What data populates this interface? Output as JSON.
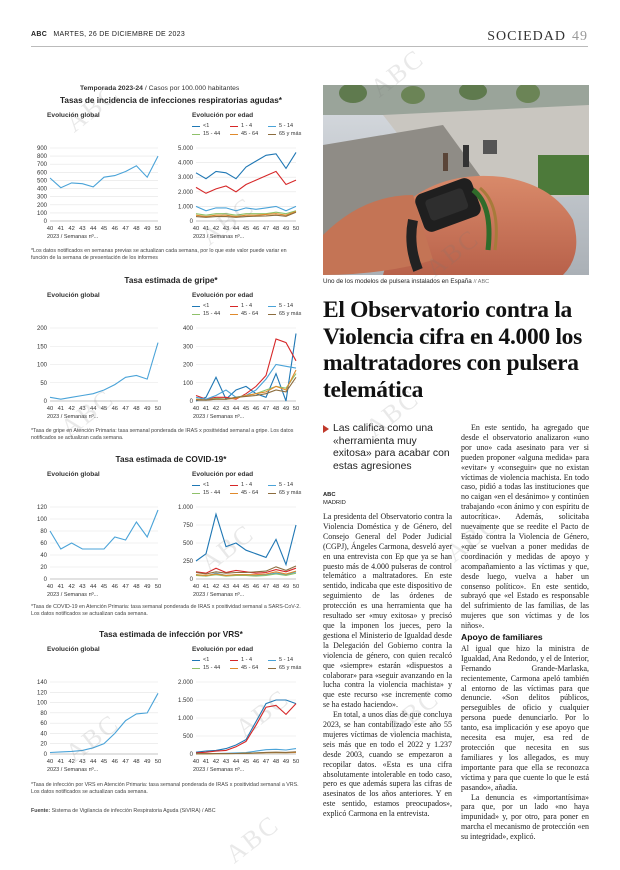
{
  "header": {
    "paper": "ABC",
    "date": "MARTES, 26 DE DICIEMBRE DE 2023",
    "section": "SOCIEDAD",
    "page": "49"
  },
  "watermark": "ABC",
  "infographic": {
    "season_label": "Temporada 2023-24",
    "season_unit": "/ Casos por 100.000 habitantes",
    "legend_labels": [
      "<1",
      "1 - 4",
      "5 - 14",
      "15 - 44",
      "45 - 64",
      "65 y más"
    ],
    "legend_colors": [
      "#1f77b4",
      "#d62728",
      "#4aa3d8",
      "#8fc16a",
      "#e08a2c",
      "#8c6d3f"
    ],
    "global_label": "Evolución global",
    "age_label": "Evolución por edad",
    "xaxis_caption": "2023 / Semanas nº...",
    "weeks": [
      "40",
      "41",
      "42",
      "43",
      "44",
      "45",
      "46",
      "47",
      "48",
      "49",
      "50"
    ],
    "source_bold": "Fuente:",
    "source_text": "Sistema de Vigilancia de infección Respiratoria Aguda (SiVIRA) / ABC"
  },
  "chart_data": [
    {
      "type": "line",
      "title": "Tasas de incidencia de infecciones respiratorias agudas*",
      "global": {
        "values": [
          530,
          410,
          470,
          460,
          420,
          540,
          560,
          610,
          680,
          540,
          800
        ],
        "ylim": [
          0,
          900
        ],
        "ticks": [
          "0",
          "100",
          "200",
          "300",
          "400",
          "500",
          "600",
          "700",
          "800",
          "900"
        ]
      },
      "by_age": {
        "ylim": [
          0,
          5000
        ],
        "ticks": [
          "0",
          "1.000",
          "2.000",
          "3.000",
          "4.000",
          "5.000"
        ],
        "series": [
          {
            "name": "<1",
            "values": [
              3300,
              2900,
              3400,
              3300,
              2900,
              3700,
              4100,
              4500,
              4600,
              3600,
              4700
            ]
          },
          {
            "name": "1 - 4",
            "values": [
              2300,
              1900,
              2200,
              2400,
              2000,
              2500,
              2800,
              3100,
              3400,
              2500,
              2800
            ]
          },
          {
            "name": "5 - 14",
            "values": [
              1000,
              700,
              900,
              900,
              700,
              900,
              800,
              900,
              1000,
              700,
              1000
            ]
          },
          {
            "name": "15 - 44",
            "values": [
              500,
              400,
              500,
              500,
              400,
              500,
              500,
              500,
              600,
              500,
              700
            ]
          },
          {
            "name": "45 - 64",
            "values": [
              400,
              300,
              400,
              400,
              300,
              400,
              400,
              450,
              500,
              400,
              650
            ]
          },
          {
            "name": "65 y más",
            "values": [
              300,
              250,
              300,
              300,
              250,
              300,
              330,
              350,
              400,
              320,
              600
            ]
          }
        ]
      },
      "note": "*Los datos notificados en semanas previas se actualizan cada semana, por lo que este valor puede variar en función de la semana de presentación de los informes"
    },
    {
      "type": "line",
      "title": "Tasa estimada de gripe*",
      "global": {
        "values": [
          10,
          5,
          10,
          15,
          20,
          30,
          45,
          65,
          70,
          60,
          160
        ],
        "ylim": [
          0,
          200
        ],
        "ticks": [
          "0",
          "50",
          "100",
          "150",
          "200"
        ]
      },
      "by_age": {
        "ylim": [
          0,
          400
        ],
        "ticks": [
          "0",
          "100",
          "200",
          "300",
          "400"
        ],
        "series": [
          {
            "name": "<1",
            "values": [
              0,
              20,
              130,
              10,
              60,
              80,
              40,
              20,
              150,
              0,
              370
            ]
          },
          {
            "name": "1 - 4",
            "values": [
              30,
              10,
              20,
              20,
              10,
              40,
              80,
              140,
              340,
              320,
              220
            ]
          },
          {
            "name": "5 - 14",
            "values": [
              20,
              10,
              30,
              60,
              20,
              30,
              60,
              120,
              200,
              190,
              180
            ]
          },
          {
            "name": "15 - 44",
            "values": [
              10,
              5,
              15,
              10,
              20,
              30,
              40,
              60,
              80,
              70,
              150
            ]
          },
          {
            "name": "45 - 64",
            "values": [
              10,
              5,
              10,
              10,
              15,
              30,
              40,
              50,
              80,
              60,
              170
            ]
          },
          {
            "name": "65 y más",
            "values": [
              5,
              5,
              10,
              10,
              20,
              25,
              30,
              40,
              60,
              50,
              130
            ]
          }
        ]
      },
      "note": "*Tasa de gripe en Atención Primaria: tasa semanal ponderada de IRAS x positividad semanal a gripe. Los datos notificados se actualizan cada semana."
    },
    {
      "type": "line",
      "title": "Tasa estimada de COVID-19*",
      "global": {
        "values": [
          80,
          50,
          60,
          50,
          50,
          50,
          70,
          65,
          95,
          70,
          115
        ],
        "ylim": [
          0,
          120
        ],
        "ticks": [
          "0",
          "20",
          "40",
          "60",
          "80",
          "100",
          "120"
        ]
      },
      "by_age": {
        "ylim": [
          0,
          1000
        ],
        "ticks": [
          "0",
          "250",
          "500",
          "750",
          "1.000"
        ],
        "series": [
          {
            "name": "<1",
            "values": [
              250,
              350,
              900,
              450,
              500,
              400,
              350,
              300,
              550,
              200,
              750
            ]
          },
          {
            "name": "1 - 4",
            "values": [
              100,
              80,
              150,
              90,
              120,
              100,
              80,
              90,
              130,
              100,
              150
            ]
          },
          {
            "name": "5 - 14",
            "values": [
              60,
              40,
              80,
              50,
              60,
              60,
              50,
              60,
              80,
              60,
              100
            ]
          },
          {
            "name": "15 - 44",
            "values": [
              50,
              40,
              60,
              40,
              50,
              50,
              40,
              50,
              70,
              50,
              80
            ]
          },
          {
            "name": "45 - 64",
            "values": [
              60,
              50,
              70,
              50,
              60,
              60,
              60,
              70,
              100,
              70,
              110
            ]
          },
          {
            "name": "65 y más",
            "values": [
              90,
              70,
              100,
              80,
              90,
              90,
              100,
              110,
              170,
              120,
              180
            ]
          }
        ]
      },
      "note": "*Tasa de COVID-19 en Atención Primaria: tasa semanal ponderada de IRAS x positividad semanal a SARS-CoV-2. Los datos notificados se actualizan cada semana."
    },
    {
      "type": "line",
      "title": "Tasa estimada de infección por VRS*",
      "global": {
        "values": [
          3,
          4,
          5,
          7,
          12,
          20,
          40,
          65,
          78,
          80,
          118
        ],
        "ylim": [
          0,
          140
        ],
        "ticks": [
          "0",
          "20",
          "40",
          "60",
          "80",
          "100",
          "120",
          "140"
        ]
      },
      "by_age": {
        "ylim": [
          0,
          2000
        ],
        "ticks": [
          "0",
          "500",
          "1.000",
          "1.500",
          "2.000"
        ],
        "series": [
          {
            "name": "<1",
            "values": [
              50,
              80,
              100,
              150,
              250,
              400,
              900,
              1400,
              1500,
              1500,
              1400
            ]
          },
          {
            "name": "1 - 4",
            "values": [
              30,
              50,
              80,
              100,
              200,
              350,
              800,
              1300,
              1350,
              1100,
              1400
            ]
          },
          {
            "name": "5 - 14",
            "values": [
              10,
              10,
              15,
              20,
              30,
              40,
              80,
              120,
              130,
              110,
              150
            ]
          },
          {
            "name": "15 - 44",
            "values": [
              5,
              5,
              10,
              10,
              15,
              20,
              30,
              40,
              45,
              40,
              50
            ]
          },
          {
            "name": "45 - 64",
            "values": [
              5,
              5,
              10,
              10,
              15,
              20,
              25,
              35,
              40,
              35,
              45
            ]
          },
          {
            "name": "65 y más",
            "values": [
              5,
              5,
              10,
              10,
              15,
              20,
              30,
              45,
              50,
              45,
              60
            ]
          }
        ]
      },
      "note": "*Tasa de infección por VRS en Atención Primaria: tasa semanal ponderada de IRAS x positividad semanal a VRS. Los datos notificados se actualizan cada semana."
    }
  ],
  "article": {
    "photo_alt": "pulsera telemática",
    "caption": "Uno de los modelos de pulsera instalados en España",
    "caption_source": "// ABC",
    "headline": "El Observatorio contra la Violencia cifra en 4.000 los maltratadores con pulsera telemática",
    "dek": "Las califica como una «herramienta muy exitosa» para acabar con estas agresiones",
    "byline_org": "ABC",
    "byline_city": "MADRID",
    "col1": [
      "La presidenta del Observatorio contra la Violencia Doméstica y de Género, del Consejo General del Poder Judicial (CGPJ), Ángeles Carmona, desveló ayer en una entrevista con Ep que ya se han puesto más de 4.000 pulseras de control telemático a maltratadores. En este sentido, indicaba que este dispositivo de seguimiento de las órdenes de protección es una herramienta que ha resultado ser «muy exitosa» y precisó que la imponen los jueces, pero la gestiona el Ministerio de Igualdad desde la Delegación del Gobierno contra la violencia de género, con quien recalcó que «siempre» estarán «dispuestos a colaborar» para «seguir avanzando en la lucha contra la violencia machista» y que este recurso «se incremente como se ha estado haciendo».",
      "En total, a unos días de que concluya 2023, se han contabilizado este año 55 mujeres víctimas de violencia machista, seis más que en todo el 2022 y 1.237 desde 2003, cuando se empezaron a recopilar datos. «Esta es una cifra absolutamente intolerable en todo caso, pero es que además supera las cifras de asesinatos de los años anteriores. Y en este sentido, estamos preocupados», explicó Carmona en la entrevista."
    ],
    "col2": [
      "En este sentido, ha agregado que desde el observatorio analizaron «uno por uno» cada asesinato para ver si pueden proponer «alguna medida» para «evitar» y «conseguir» que no existan víctimas de violencia machista. En todo caso, pidió a todas las instituciones que no caigan «en el desánimo» y continúen trabajando «con ánimo y con espíritu de autocrítica». Además, solicitaba nuevamente que se reedite el Pacto de Estado contra la Violencia de Género, «que se vuelvan a poner medidas de coordinación y medidas de apoyo y acompañamiento a las víctimas y que, desde luego, vuelva a haber un consenso político». En este sentido, subrayó que «el Estado es responsable del sufrimiento de las familias, de las mujeres que son víctimas y de los niños»."
    ],
    "col2_heading": "Apoyo de familiares",
    "col2b": [
      "Al igual que hizo la ministra de Igualdad, Ana Redondo, y el de Interior, Fernando Grande-Marlaska, recientemente, Carmona apeló también al entorno de las víctimas para que denuncie. «Son delitos públicos, perseguibles de oficio y cualquier persona puede denunciarlo. Por lo tanto, esa implicación y ese apoyo que necesita esa mujer, esa red de protección que necesita en sus familiares y los allegados, es muy importante para que ella se reconozca víctima y para que cuente lo que le está pasando», añadía.",
      "La denuncia es «importantísima» para que, por un lado «no haya impunidad» y, por otro, para poner en marcha el mecanismo de protección «en su integridad», explicó."
    ]
  }
}
